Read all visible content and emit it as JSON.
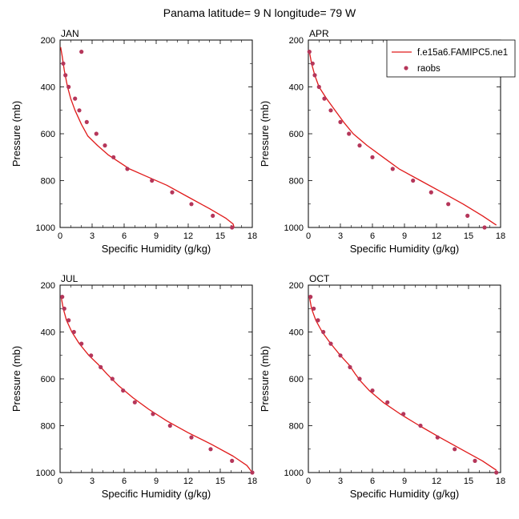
{
  "figure_title": "Panama  latitude= 9 N longitude= 79 W",
  "colors": {
    "model": "#e01a1a",
    "obs": "#b5365a",
    "axis": "#000000"
  },
  "legend": {
    "model_label": "f.e15a6.FAMIPC5.ne1",
    "obs_label": "raobs"
  },
  "chart_data": [
    {
      "type": "line",
      "panel": "JAN",
      "xlabel": "Specific Humidity (g/kg)",
      "ylabel": "Pressure (mb)",
      "xlim": [
        0,
        18
      ],
      "ylim": [
        200,
        1000
      ],
      "y_inverted": true,
      "xticks": [
        0,
        3,
        6,
        9,
        12,
        15,
        18
      ],
      "yticks": [
        200,
        400,
        600,
        800,
        1000
      ],
      "series": [
        {
          "name": "f.e15a6.FAMIPC5.ne1",
          "kind": "line",
          "x": [
            0.05,
            0.2,
            0.4,
            0.7,
            1.0,
            1.4,
            2.0,
            2.6,
            3.5,
            4.5,
            5.5,
            6.5,
            8.0,
            10.0,
            12.0,
            14.0,
            15.5,
            16.2,
            16.3
          ],
          "y": [
            230,
            270,
            330,
            400,
            450,
            500,
            560,
            610,
            650,
            690,
            720,
            750,
            780,
            820,
            870,
            920,
            960,
            985,
            1000
          ]
        },
        {
          "name": "raobs",
          "kind": "scatter",
          "x": [
            2.0,
            0.3,
            0.5,
            0.8,
            1.4,
            1.8,
            2.5,
            3.4,
            4.2,
            5.0,
            6.3,
            8.6,
            10.5,
            12.3,
            14.3,
            16.1
          ],
          "y": [
            250,
            300,
            350,
            400,
            450,
            500,
            550,
            600,
            650,
            700,
            750,
            800,
            850,
            900,
            950,
            1000
          ]
        }
      ]
    },
    {
      "type": "line",
      "panel": "APR",
      "xlabel": "Specific Humidity (g/kg)",
      "ylabel": "Pressure (mb)",
      "xlim": [
        0,
        18
      ],
      "ylim": [
        200,
        1000
      ],
      "y_inverted": true,
      "xticks": [
        0,
        3,
        6,
        9,
        12,
        15,
        18
      ],
      "yticks": [
        200,
        400,
        600,
        800,
        1000
      ],
      "series": [
        {
          "name": "f.e15a6.FAMIPC5.ne1",
          "kind": "line",
          "x": [
            0.1,
            0.3,
            0.6,
            1.0,
            1.7,
            2.5,
            3.3,
            4.2,
            5.5,
            7.0,
            8.5,
            10.5,
            12.5,
            14.5,
            16.3,
            17.6
          ],
          "y": [
            250,
            300,
            350,
            400,
            450,
            500,
            550,
            600,
            650,
            700,
            750,
            800,
            850,
            900,
            950,
            990
          ]
        },
        {
          "name": "raobs",
          "kind": "scatter",
          "x": [
            0.1,
            0.4,
            0.6,
            1.0,
            1.5,
            2.1,
            3.0,
            3.8,
            4.8,
            6.0,
            7.9,
            9.8,
            11.5,
            13.1,
            14.9,
            16.5
          ],
          "y": [
            250,
            300,
            350,
            400,
            450,
            500,
            550,
            600,
            650,
            700,
            750,
            800,
            850,
            900,
            950,
            1000
          ]
        }
      ]
    },
    {
      "type": "line",
      "panel": "JUL",
      "xlabel": "Specific Humidity (g/kg)",
      "ylabel": "Pressure (mb)",
      "xlim": [
        0,
        18
      ],
      "ylim": [
        200,
        1000
      ],
      "y_inverted": true,
      "xticks": [
        0,
        3,
        6,
        9,
        12,
        15,
        18
      ],
      "yticks": [
        200,
        400,
        600,
        800,
        1000
      ],
      "series": [
        {
          "name": "f.e15a6.FAMIPC5.ne1",
          "kind": "line",
          "x": [
            0.1,
            0.3,
            0.6,
            1.1,
            1.8,
            2.7,
            3.6,
            4.4,
            5.5,
            6.8,
            8.3,
            10.0,
            12.0,
            14.2,
            16.2,
            17.5,
            18.0
          ],
          "y": [
            250,
            300,
            350,
            400,
            450,
            500,
            540,
            580,
            630,
            680,
            730,
            780,
            830,
            880,
            930,
            970,
            1000
          ]
        },
        {
          "name": "raobs",
          "kind": "scatter",
          "x": [
            0.2,
            0.4,
            0.8,
            1.3,
            2.0,
            2.9,
            3.8,
            4.9,
            5.9,
            7.0,
            8.7,
            10.3,
            12.3,
            14.1,
            16.1,
            18.0
          ],
          "y": [
            250,
            300,
            350,
            400,
            450,
            500,
            550,
            600,
            650,
            700,
            750,
            800,
            850,
            900,
            950,
            1000
          ]
        }
      ]
    },
    {
      "type": "line",
      "panel": "OCT",
      "xlabel": "Specific Humidity (g/kg)",
      "ylabel": "Pressure (mb)",
      "xlim": [
        0,
        18
      ],
      "ylim": [
        200,
        1000
      ],
      "y_inverted": true,
      "xticks": [
        0,
        3,
        6,
        9,
        12,
        15,
        18
      ],
      "yticks": [
        200,
        400,
        600,
        800,
        1000
      ],
      "series": [
        {
          "name": "f.e15a6.FAMIPC5.ne1",
          "kind": "line",
          "x": [
            0.1,
            0.3,
            0.7,
            1.3,
            2.1,
            3.0,
            3.8,
            4.4,
            4.9,
            5.7,
            7.0,
            8.6,
            10.4,
            12.3,
            14.3,
            16.3,
            17.6
          ],
          "y": [
            250,
            300,
            350,
            400,
            450,
            500,
            540,
            580,
            610,
            650,
            700,
            750,
            800,
            850,
            900,
            950,
            990
          ]
        },
        {
          "name": "raobs",
          "kind": "scatter",
          "x": [
            0.2,
            0.5,
            0.9,
            1.4,
            2.1,
            3.0,
            3.9,
            4.8,
            6.0,
            7.4,
            8.9,
            10.5,
            12.1,
            13.7,
            15.6,
            17.6
          ],
          "y": [
            250,
            300,
            350,
            400,
            450,
            500,
            550,
            600,
            650,
            700,
            750,
            800,
            850,
            900,
            950,
            1000
          ]
        }
      ]
    }
  ]
}
